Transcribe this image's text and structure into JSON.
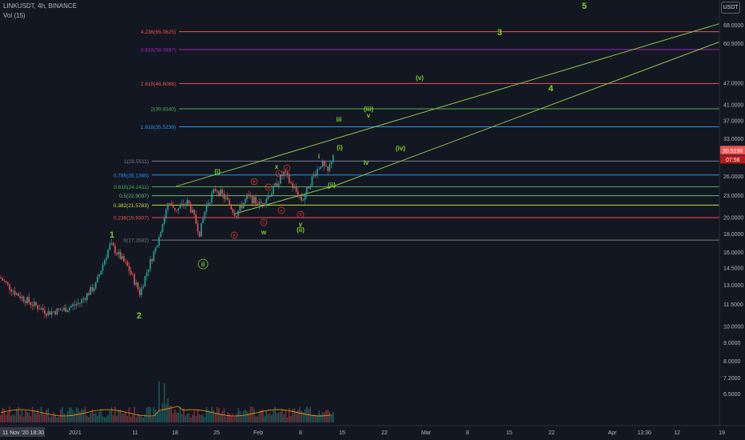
{
  "header": {
    "symbol_line": "LINKUSDT, 4h, BINANCE",
    "volume_line": "Vol (15)",
    "currency_badge": "USDT"
  },
  "colors": {
    "background": "#131722",
    "up": "#26a69a",
    "down": "#ef5350",
    "wave_label": "#7ed321",
    "counter_label": "#e53935",
    "channel": "#8bc34a"
  },
  "chart_data": {
    "type": "candlestick",
    "symbol": "LINKUSDT",
    "timeframe": "4h",
    "exchange": "BINANCE",
    "price_axis_labels": [
      "68.0000",
      "60.5000",
      "47.0000",
      "41.0000",
      "37.0000",
      "33.0000",
      "30.5196",
      "26.0000",
      "23.0000",
      "20.0000",
      "18.0000",
      "16.0000",
      "14.5000",
      "13.0000",
      "11.5000",
      "10.0000",
      "9.0000",
      "8.0000",
      "7.2000",
      "6.5000"
    ],
    "time_axis_labels": [
      "2021",
      "11",
      "18",
      "25",
      "Feb",
      "8",
      "15",
      "22",
      "Mar",
      "8",
      "15",
      "22",
      "Apr",
      "13:30",
      "12",
      "19"
    ],
    "crosshair_time": "11 Nov '20  18:30",
    "last_price": "30.5196",
    "countdown": "07:56",
    "fib_levels": [
      {
        "label": "4.236(65.0625)",
        "price": 65.0625,
        "color": "#ef5350"
      },
      {
        "label": "3.618(58.0897)",
        "price": 58.0897,
        "color": "#9c27b0"
      },
      {
        "label": "2.618(46.8068)",
        "price": 46.8068,
        "color": "#ef5350"
      },
      {
        "label": "2(39.8340)",
        "price": 39.834,
        "color": "#4caf50"
      },
      {
        "label": "1.618(35.5239)",
        "price": 35.5239,
        "color": "#2196f3"
      },
      {
        "label": "1(28.5511)",
        "price": 28.5511,
        "color": "#787b86"
      },
      {
        "label": "0.786(26.1366)",
        "price": 26.1366,
        "color": "#2196f3"
      },
      {
        "label": "0.618(24.2411)",
        "price": 24.2411,
        "color": "#4caf50"
      },
      {
        "label": "0.5(22.9097)",
        "price": 22.9097,
        "color": "#66bb6a"
      },
      {
        "label": "0.382(21.5783)",
        "price": 21.5783,
        "color": "#cddc39"
      },
      {
        "label": "0.236(19.9307)",
        "price": 19.9307,
        "color": "#ef5350"
      },
      {
        "label": "0(17.2682)",
        "price": 17.2682,
        "color": "#787b86"
      }
    ],
    "wave_labels": [
      "1",
      "2",
      "3",
      "4",
      "5",
      "(i)",
      "ii",
      "(ii)",
      "(iii)",
      "(iv)",
      "(v)",
      "iii",
      "iv",
      "v",
      "i",
      "w",
      "x",
      "y",
      "(i)",
      "(ii)"
    ],
    "counter_labels": [
      "A",
      "B",
      "C",
      "a",
      "b",
      "c",
      "d",
      "e"
    ]
  }
}
